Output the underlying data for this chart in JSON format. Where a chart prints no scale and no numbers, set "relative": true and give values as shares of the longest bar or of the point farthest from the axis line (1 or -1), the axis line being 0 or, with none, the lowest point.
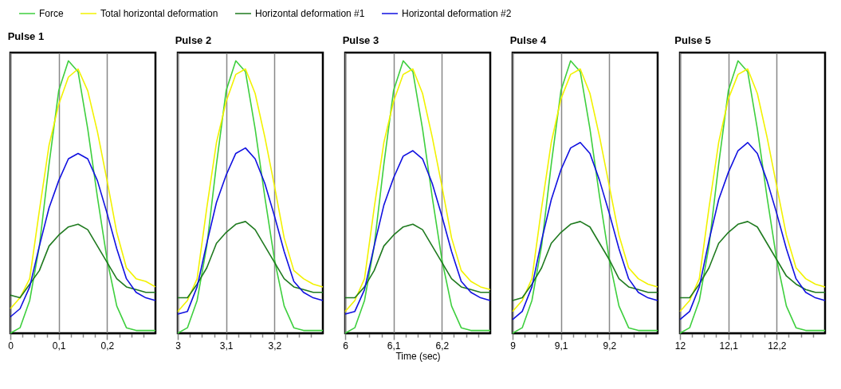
{
  "chart_data": [
    {
      "type": "line",
      "title": "Pulse 1",
      "relative": true,
      "legend": "top",
      "grid": "x",
      "xlim": [
        0,
        0.3
      ],
      "xticks": [
        0,
        {
          "value": 0.025,
          "label": null
        },
        {
          "value": 0.05,
          "label": null
        },
        {
          "value": 0.075,
          "label": null
        },
        {
          "value": 0.1,
          "label": "0,1"
        },
        {
          "value": 0.125,
          "label": null
        },
        {
          "value": 0.15,
          "label": null
        },
        {
          "value": 0.175,
          "label": null
        },
        {
          "value": 0.2,
          "label": "0,2"
        },
        {
          "value": 0.225,
          "label": null
        },
        {
          "value": 0.25,
          "label": null
        },
        {
          "value": 0.275,
          "label": null
        }
      ],
      "x": [
        0,
        0.02,
        0.04,
        0.06,
        0.08,
        0.1,
        0.12,
        0.14,
        0.16,
        0.18,
        0.2,
        0.22,
        0.24,
        0.26,
        0.28,
        0.3
      ],
      "series": [
        {
          "name": "Force",
          "color": "#3ecf3e",
          "values": [
            0,
            0.02,
            0.12,
            0.32,
            0.62,
            0.89,
            1,
            0.96,
            0.75,
            0.5,
            0.27,
            0.1,
            0.02,
            0.01,
            0.01,
            0.01
          ]
        },
        {
          "name": "Total horizontal deformation",
          "color": "#f2f200",
          "values": [
            0.09,
            0.13,
            0.2,
            0.45,
            0.69,
            0.84,
            0.94,
            0.97,
            0.89,
            0.74,
            0.56,
            0.37,
            0.24,
            0.2,
            0.19,
            0.17
          ]
        },
        {
          "name": "Horizontal deformation #1",
          "color": "#1f7a1f",
          "values": [
            0.14,
            0.13,
            0.18,
            0.23,
            0.32,
            0.36,
            0.39,
            0.4,
            0.38,
            0.32,
            0.26,
            0.2,
            0.17,
            0.16,
            0.15,
            0.15
          ]
        },
        {
          "name": "Horizontal deformation #2",
          "color": "#1010e0",
          "values": [
            0.06,
            0.09,
            0.17,
            0.32,
            0.46,
            0.56,
            0.64,
            0.66,
            0.64,
            0.56,
            0.44,
            0.31,
            0.2,
            0.15,
            0.13,
            0.12
          ]
        }
      ]
    },
    {
      "type": "line",
      "title": "Pulse 2",
      "relative": true,
      "grid": "x",
      "xlim": [
        3,
        3.3
      ],
      "xticks": [
        3,
        {
          "value": 3.025,
          "label": null
        },
        {
          "value": 3.05,
          "label": null
        },
        {
          "value": 3.075,
          "label": null
        },
        {
          "value": 3.1,
          "label": "3,1"
        },
        {
          "value": 3.125,
          "label": null
        },
        {
          "value": 3.15,
          "label": null
        },
        {
          "value": 3.175,
          "label": null
        },
        {
          "value": 3.2,
          "label": "3,2"
        },
        {
          "value": 3.225,
          "label": null
        },
        {
          "value": 3.25,
          "label": null
        },
        {
          "value": 3.275,
          "label": null
        }
      ],
      "x": [
        3,
        3.02,
        3.04,
        3.06,
        3.08,
        3.1,
        3.12,
        3.14,
        3.16,
        3.18,
        3.2,
        3.22,
        3.24,
        3.26,
        3.28,
        3.3
      ],
      "series": [
        {
          "color": "#3ecf3e",
          "values": [
            0,
            0.02,
            0.12,
            0.32,
            0.62,
            0.89,
            1,
            0.96,
            0.75,
            0.5,
            0.27,
            0.1,
            0.02,
            0.01,
            0.01,
            0.01
          ]
        },
        {
          "color": "#f2f200",
          "values": [
            0.08,
            0.12,
            0.2,
            0.46,
            0.7,
            0.85,
            0.95,
            0.97,
            0.88,
            0.72,
            0.54,
            0.35,
            0.23,
            0.2,
            0.18,
            0.17
          ]
        },
        {
          "color": "#1f7a1f",
          "values": [
            0.13,
            0.13,
            0.18,
            0.24,
            0.33,
            0.37,
            0.4,
            0.41,
            0.38,
            0.32,
            0.26,
            0.2,
            0.17,
            0.16,
            0.15,
            0.15
          ]
        },
        {
          "color": "#1010e0",
          "values": [
            0.07,
            0.08,
            0.17,
            0.33,
            0.48,
            0.58,
            0.66,
            0.68,
            0.64,
            0.55,
            0.43,
            0.3,
            0.19,
            0.15,
            0.13,
            0.12
          ]
        }
      ]
    },
    {
      "type": "line",
      "title": "Pulse 3",
      "relative": true,
      "grid": "x",
      "xlabel": "Time (sec)",
      "xlim": [
        6,
        6.3
      ],
      "xticks": [
        6,
        {
          "value": 6.025,
          "label": null
        },
        {
          "value": 6.05,
          "label": null
        },
        {
          "value": 6.075,
          "label": null
        },
        {
          "value": 6.1,
          "label": "6,1"
        },
        {
          "value": 6.125,
          "label": null
        },
        {
          "value": 6.15,
          "label": null
        },
        {
          "value": 6.175,
          "label": null
        },
        {
          "value": 6.2,
          "label": "6,2"
        },
        {
          "value": 6.225,
          "label": null
        },
        {
          "value": 6.25,
          "label": null
        },
        {
          "value": 6.275,
          "label": null
        }
      ],
      "x": [
        6,
        6.02,
        6.04,
        6.06,
        6.08,
        6.1,
        6.12,
        6.14,
        6.16,
        6.18,
        6.2,
        6.22,
        6.24,
        6.26,
        6.28,
        6.3
      ],
      "series": [
        {
          "color": "#3ecf3e",
          "values": [
            0,
            0.02,
            0.12,
            0.32,
            0.62,
            0.89,
            1,
            0.96,
            0.75,
            0.5,
            0.27,
            0.1,
            0.02,
            0.01,
            0.01,
            0.01
          ]
        },
        {
          "color": "#f2f200",
          "values": [
            0.08,
            0.12,
            0.2,
            0.46,
            0.7,
            0.85,
            0.95,
            0.97,
            0.88,
            0.72,
            0.54,
            0.35,
            0.23,
            0.19,
            0.17,
            0.16
          ]
        },
        {
          "color": "#1f7a1f",
          "values": [
            0.13,
            0.13,
            0.17,
            0.23,
            0.32,
            0.36,
            0.39,
            0.4,
            0.38,
            0.32,
            0.26,
            0.2,
            0.17,
            0.16,
            0.15,
            0.15
          ]
        },
        {
          "color": "#1010e0",
          "values": [
            0.07,
            0.08,
            0.16,
            0.32,
            0.47,
            0.57,
            0.65,
            0.67,
            0.64,
            0.55,
            0.43,
            0.3,
            0.19,
            0.15,
            0.13,
            0.12
          ]
        }
      ]
    },
    {
      "type": "line",
      "title": "Pulse 4",
      "relative": true,
      "grid": "x",
      "xlim": [
        9,
        9.3
      ],
      "xticks": [
        9,
        {
          "value": 9.025,
          "label": null
        },
        {
          "value": 9.05,
          "label": null
        },
        {
          "value": 9.075,
          "label": null
        },
        {
          "value": 9.1,
          "label": "9,1"
        },
        {
          "value": 9.125,
          "label": null
        },
        {
          "value": 9.15,
          "label": null
        },
        {
          "value": 9.175,
          "label": null
        },
        {
          "value": 9.2,
          "label": "9,2"
        },
        {
          "value": 9.225,
          "label": null
        },
        {
          "value": 9.25,
          "label": null
        },
        {
          "value": 9.275,
          "label": null
        }
      ],
      "x": [
        9,
        9.02,
        9.04,
        9.06,
        9.08,
        9.1,
        9.12,
        9.14,
        9.16,
        9.18,
        9.2,
        9.22,
        9.24,
        9.26,
        9.28,
        9.3
      ],
      "series": [
        {
          "color": "#3ecf3e",
          "values": [
            0,
            0.02,
            0.12,
            0.32,
            0.62,
            0.89,
            1,
            0.96,
            0.75,
            0.5,
            0.27,
            0.1,
            0.02,
            0.01,
            0.01,
            0.01
          ]
        },
        {
          "color": "#f2f200",
          "values": [
            0.08,
            0.12,
            0.2,
            0.46,
            0.7,
            0.86,
            0.95,
            0.97,
            0.88,
            0.72,
            0.54,
            0.36,
            0.24,
            0.2,
            0.18,
            0.17
          ]
        },
        {
          "color": "#1f7a1f",
          "values": [
            0.12,
            0.13,
            0.18,
            0.24,
            0.33,
            0.37,
            0.4,
            0.41,
            0.39,
            0.33,
            0.27,
            0.2,
            0.17,
            0.16,
            0.15,
            0.15
          ]
        },
        {
          "color": "#1010e0",
          "values": [
            0.05,
            0.08,
            0.17,
            0.34,
            0.49,
            0.6,
            0.68,
            0.7,
            0.66,
            0.56,
            0.44,
            0.31,
            0.2,
            0.15,
            0.13,
            0.12
          ]
        }
      ]
    },
    {
      "type": "line",
      "title": "Pulse 5",
      "relative": true,
      "grid": "x",
      "xlim": [
        12,
        12.3
      ],
      "xticks": [
        12,
        {
          "value": 12.025,
          "label": null
        },
        {
          "value": 12.05,
          "label": null
        },
        {
          "value": 12.075,
          "label": null
        },
        {
          "value": 12.1,
          "label": "12,1"
        },
        {
          "value": 12.125,
          "label": null
        },
        {
          "value": 12.15,
          "label": null
        },
        {
          "value": 12.175,
          "label": null
        },
        {
          "value": 12.2,
          "label": "12,2"
        },
        {
          "value": 12.225,
          "label": null
        },
        {
          "value": 12.25,
          "label": null
        },
        {
          "value": 12.275,
          "label": null
        }
      ],
      "x": [
        12,
        12.02,
        12.04,
        12.06,
        12.08,
        12.1,
        12.12,
        12.14,
        12.16,
        12.18,
        12.2,
        12.22,
        12.24,
        12.26,
        12.28,
        12.3
      ],
      "series": [
        {
          "color": "#3ecf3e",
          "values": [
            0,
            0.02,
            0.12,
            0.32,
            0.62,
            0.89,
            1,
            0.96,
            0.75,
            0.5,
            0.27,
            0.1,
            0.02,
            0.01,
            0.01,
            0.01
          ]
        },
        {
          "color": "#f2f200",
          "values": [
            0.08,
            0.12,
            0.2,
            0.46,
            0.7,
            0.86,
            0.95,
            0.97,
            0.88,
            0.72,
            0.54,
            0.36,
            0.24,
            0.2,
            0.18,
            0.17
          ]
        },
        {
          "color": "#1f7a1f",
          "values": [
            0.13,
            0.13,
            0.18,
            0.24,
            0.33,
            0.37,
            0.4,
            0.41,
            0.39,
            0.33,
            0.27,
            0.21,
            0.18,
            0.16,
            0.15,
            0.15
          ]
        },
        {
          "color": "#1010e0",
          "values": [
            0.05,
            0.08,
            0.17,
            0.34,
            0.49,
            0.59,
            0.67,
            0.7,
            0.66,
            0.56,
            0.44,
            0.31,
            0.2,
            0.15,
            0.13,
            0.12
          ]
        }
      ]
    }
  ]
}
